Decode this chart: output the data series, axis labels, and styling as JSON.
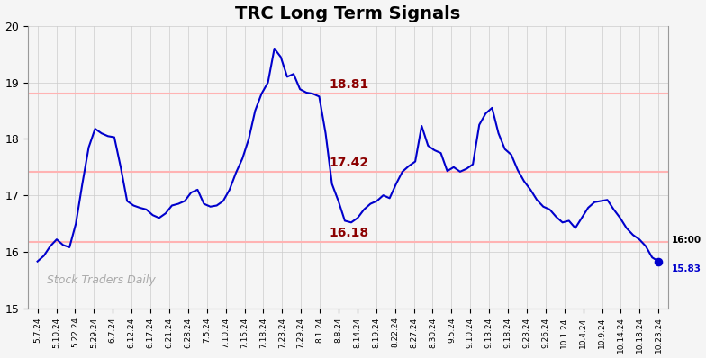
{
  "title": "TRC Long Term Signals",
  "x_labels": [
    "5.7.24",
    "5.10.24",
    "5.22.24",
    "5.29.24",
    "6.7.24",
    "6.12.24",
    "6.17.24",
    "6.21.24",
    "6.28.24",
    "7.5.24",
    "7.10.24",
    "7.15.24",
    "7.18.24",
    "7.23.24",
    "7.29.24",
    "8.1.24",
    "8.8.24",
    "8.14.24",
    "8.19.24",
    "8.22.24",
    "8.27.24",
    "8.30.24",
    "9.5.24",
    "9.10.24",
    "9.13.24",
    "9.18.24",
    "9.23.24",
    "9.26.24",
    "10.1.24",
    "10.4.24",
    "10.9.24",
    "10.14.24",
    "10.18.24",
    "10.23.24"
  ],
  "price_series": [
    15.83,
    15.93,
    16.1,
    16.22,
    16.12,
    16.08,
    16.5,
    17.2,
    17.85,
    18.18,
    18.1,
    18.05,
    18.03,
    17.5,
    16.9,
    16.82,
    16.78,
    16.75,
    16.65,
    16.6,
    16.68,
    16.82,
    16.85,
    16.9,
    17.05,
    17.1,
    16.85,
    16.8,
    16.82,
    16.9,
    17.1,
    17.4,
    17.65,
    18.0,
    18.5,
    18.8,
    19.0,
    19.6,
    19.45,
    19.1,
    19.15,
    18.88,
    18.82,
    18.8,
    18.75,
    18.1,
    17.2,
    16.9,
    16.55,
    16.52,
    16.6,
    16.75,
    16.85,
    16.9,
    17.0,
    16.95,
    17.2,
    17.42,
    17.52,
    17.6,
    18.23,
    17.88,
    17.8,
    17.75,
    17.43,
    17.5,
    17.42,
    17.47,
    17.55,
    18.25,
    18.45,
    18.55,
    18.1,
    17.82,
    17.72,
    17.45,
    17.25,
    17.1,
    16.92,
    16.8,
    16.75,
    16.62,
    16.52,
    16.55,
    16.42,
    16.6,
    16.78,
    16.88,
    16.9,
    16.92,
    16.75,
    16.6,
    16.42,
    16.3,
    16.22,
    16.1,
    15.9,
    15.83
  ],
  "hline_upper": 18.81,
  "hline_mid": 17.42,
  "hline_lower": 16.18,
  "hline_color": "#ffb3b3",
  "hline_linewidth": 1.5,
  "line_color": "#0000cc",
  "label_upper": "18.81",
  "label_mid": "17.42",
  "label_lower": "16.18",
  "label_color": "#8b0000",
  "label_end_time": "16:00",
  "label_end_value": "15.83",
  "watermark": "Stock Traders Daily",
  "ylim_min": 15.0,
  "ylim_max": 20.0,
  "yticks": [
    15,
    16,
    17,
    18,
    19,
    20
  ],
  "bg_color": "#f0f0f0",
  "plot_bg_color": "#f5f5f5"
}
